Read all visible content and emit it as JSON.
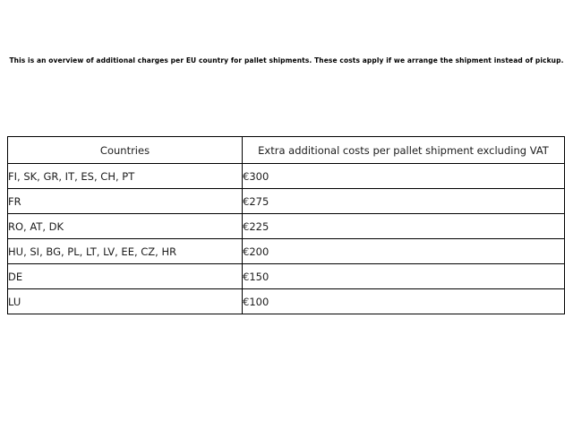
{
  "intro_text": "This is an overview of additional charges per EU country for pallet shipments. These costs apply if we arrange the shipment instead of pickup.",
  "table": {
    "headers": {
      "countries": "Countries",
      "costs": "Extra additional costs per pallet shipment excluding VAT"
    },
    "rows": [
      {
        "countries": "FI, SK, GR, IT, ES, CH, PT",
        "cost": "€300"
      },
      {
        "countries": "FR",
        "cost": "€275"
      },
      {
        "countries": "RO, AT, DK",
        "cost": "€225"
      },
      {
        "countries": "HU, SI, BG, PL, LT, LV, EE, CZ, HR",
        "cost": "€200"
      },
      {
        "countries": "DE",
        "cost": "€150"
      },
      {
        "countries": "LU",
        "cost": "€100"
      }
    ]
  },
  "colors": {
    "background": "#ffffff",
    "border": "#000000",
    "text": "#1d1d1d"
  }
}
